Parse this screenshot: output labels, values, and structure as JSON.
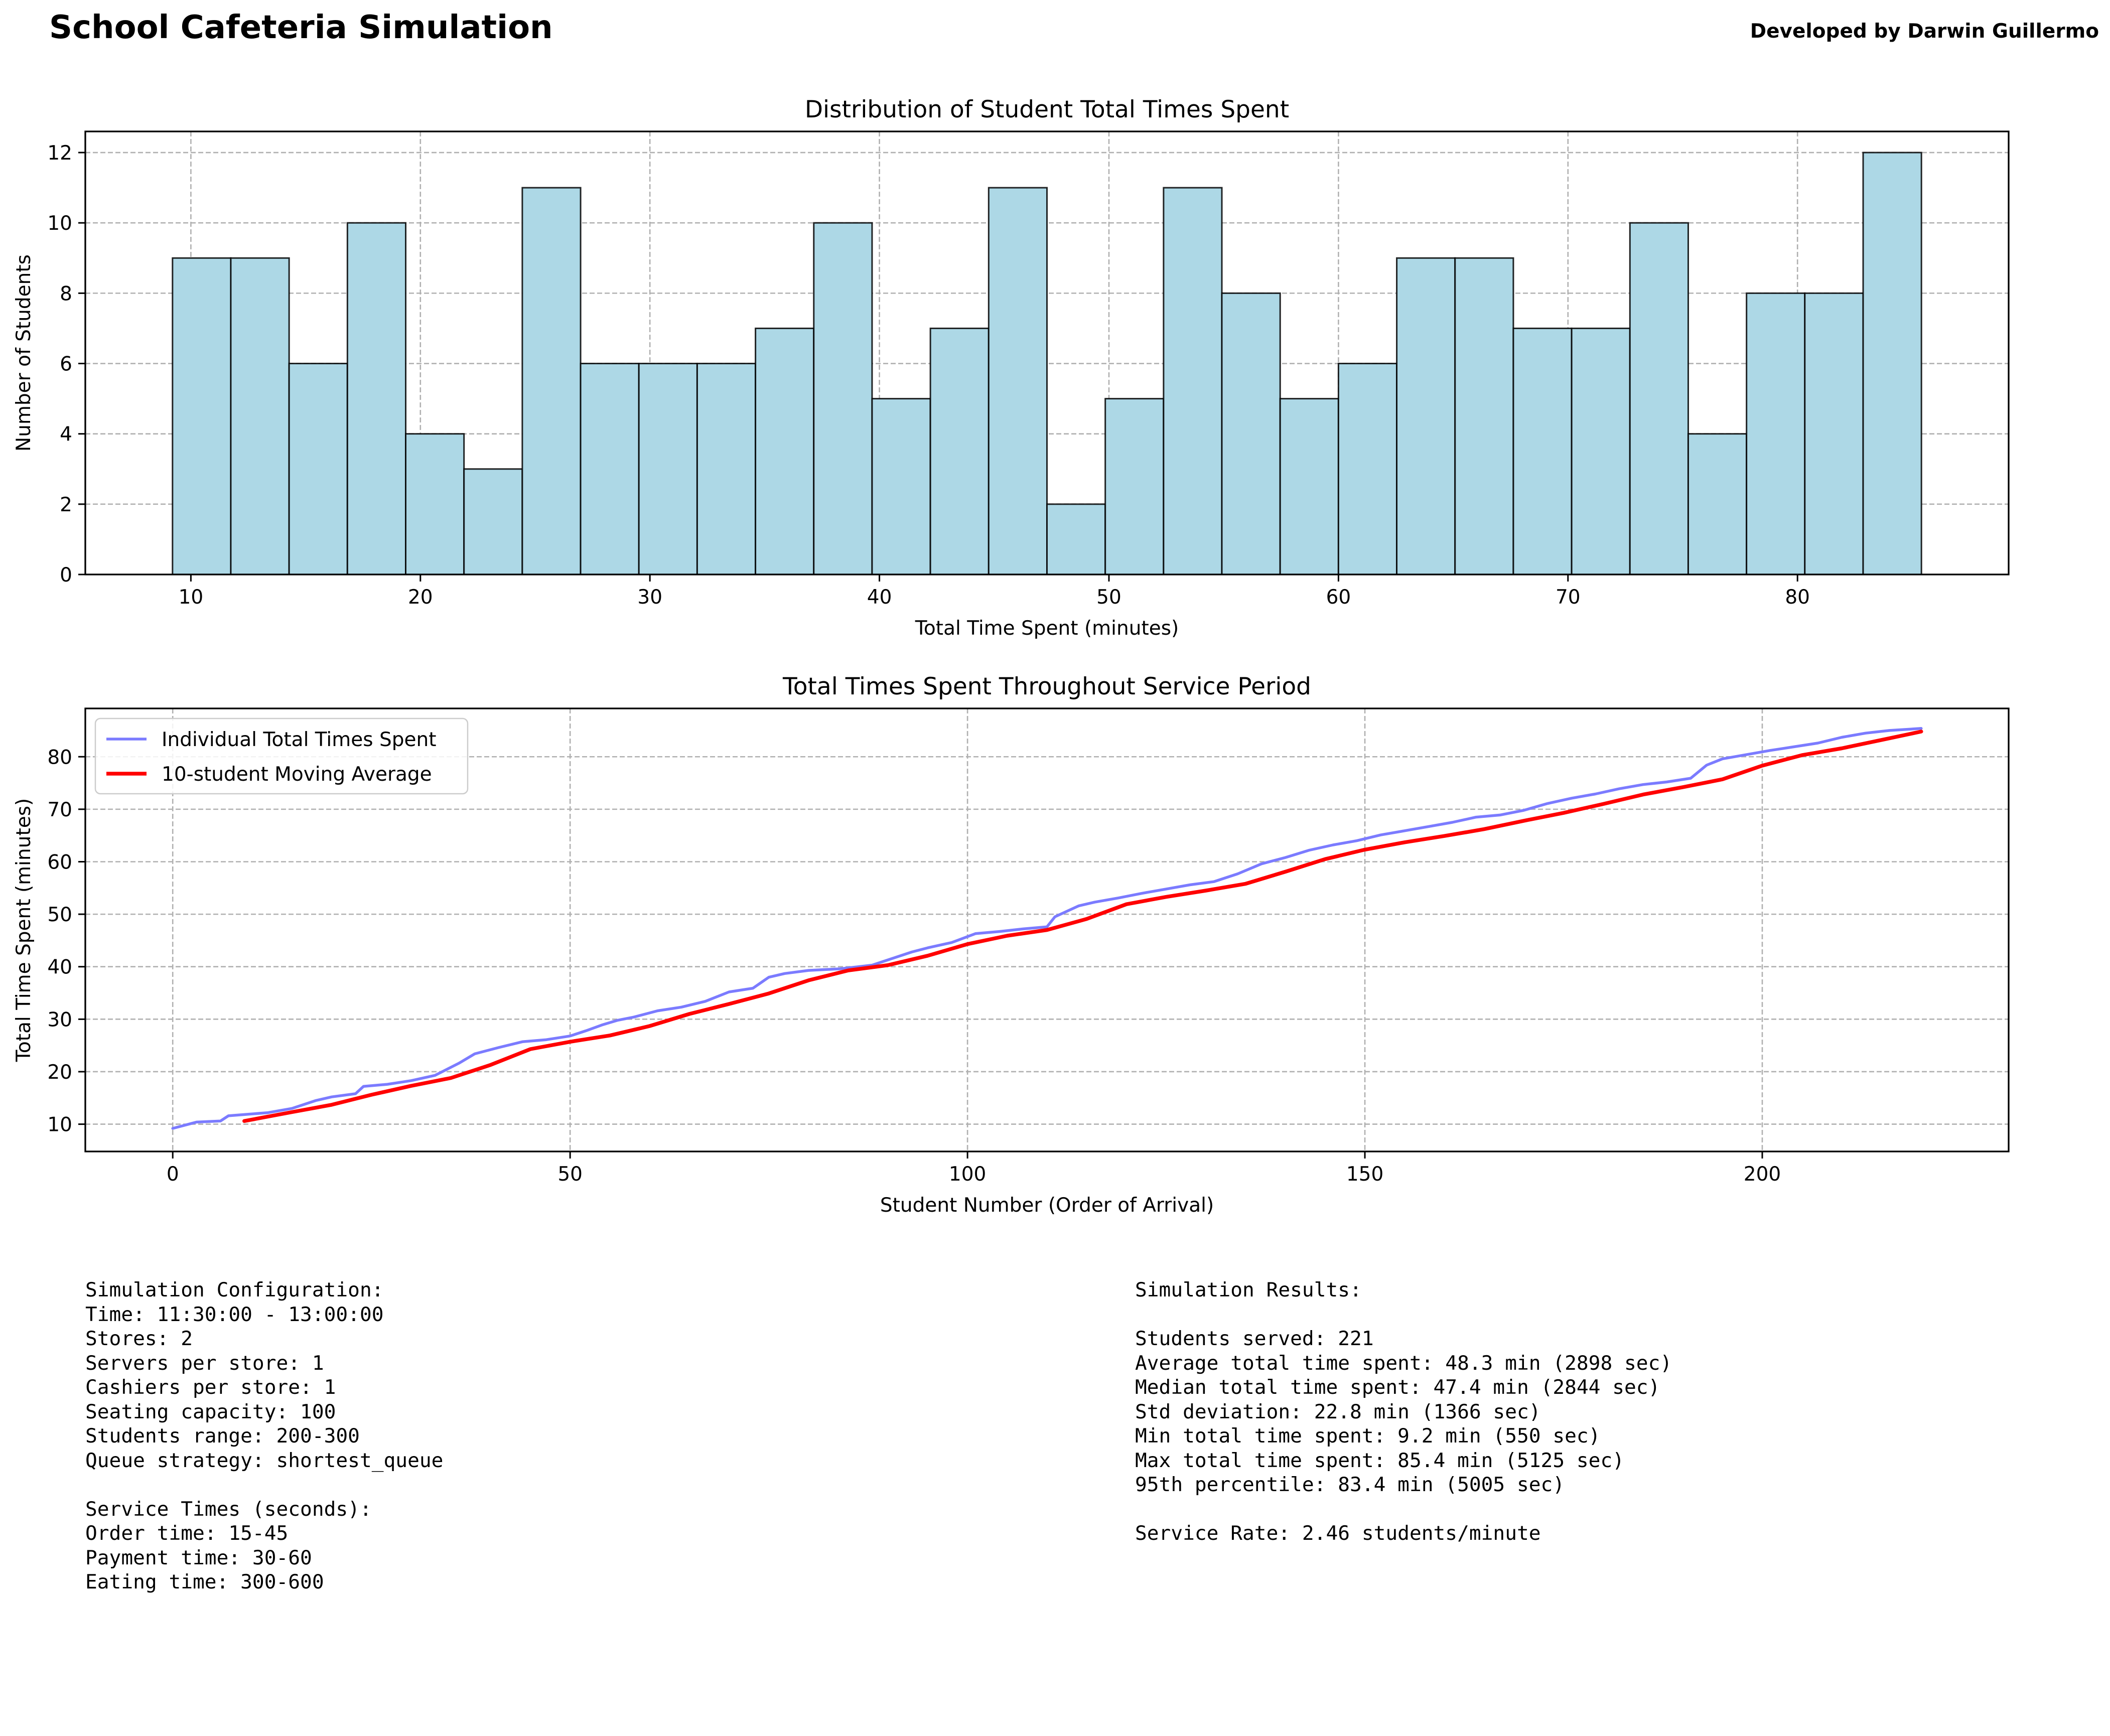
{
  "header": {
    "title": "School Cafeteria Simulation",
    "credit": "Developed by Darwin Guillermo"
  },
  "colors": {
    "hist_fill": "#add8e6",
    "hist_edge": "#000000",
    "individual_line": "#7b7bff",
    "moving_avg_line": "#ff0000",
    "grid": "#b0b0b0"
  },
  "chart_data": [
    {
      "type": "bar",
      "title": "Distribution of Student Total Times Spent",
      "xlabel": "Total Time Spent (minutes)",
      "ylabel": "Number of Students",
      "xlim": [
        5.4,
        89.2
      ],
      "ylim": [
        0,
        12.6
      ],
      "xticks": [
        10,
        20,
        30,
        40,
        50,
        60,
        70,
        80
      ],
      "yticks": [
        0,
        2,
        4,
        6,
        8,
        10,
        12
      ],
      "grid": true,
      "bins": {
        "start": 9.2,
        "end": 85.4,
        "count": 30,
        "values": [
          9,
          9,
          6,
          10,
          4,
          3,
          11,
          6,
          6,
          6,
          7,
          10,
          5,
          7,
          11,
          2,
          5,
          11,
          8,
          5,
          6,
          9,
          9,
          7,
          7,
          10,
          4,
          8,
          8,
          12
        ]
      }
    },
    {
      "type": "line",
      "title": "Total Times Spent Throughout Service Period",
      "xlabel": "Student Number (Order of Arrival)",
      "ylabel": "Total Time Spent (minutes)",
      "xlim": [
        -11,
        231
      ],
      "ylim": [
        4.8,
        89.2
      ],
      "xticks": [
        0,
        50,
        100,
        150,
        200
      ],
      "yticks": [
        10,
        20,
        30,
        40,
        50,
        60,
        70,
        80
      ],
      "grid": true,
      "legend": "upper-left",
      "series": [
        {
          "name": "Individual Total Times Spent",
          "x": [
            0,
            3,
            6,
            7,
            12,
            15,
            18,
            20,
            23,
            24,
            27,
            30,
            33,
            36,
            38,
            41,
            44,
            47,
            50,
            52,
            54,
            56,
            58,
            61,
            64,
            67,
            70,
            73,
            75,
            77,
            80,
            84,
            88,
            90,
            93,
            95,
            98,
            101,
            104,
            107,
            110,
            111,
            114,
            116,
            119,
            122,
            125,
            128,
            131,
            134,
            137,
            140,
            143,
            146,
            149,
            152,
            155,
            158,
            161,
            164,
            167,
            170,
            173,
            176,
            179,
            182,
            185,
            188,
            191,
            193,
            195,
            198,
            201,
            204,
            207,
            210,
            213,
            216,
            220
          ],
          "y": [
            9.2,
            10.4,
            10.6,
            11.6,
            12.2,
            13.0,
            14.5,
            15.2,
            15.8,
            17.2,
            17.6,
            18.3,
            19.3,
            21.6,
            23.4,
            24.6,
            25.7,
            26.1,
            26.8,
            27.8,
            28.9,
            29.8,
            30.4,
            31.6,
            32.3,
            33.4,
            35.2,
            35.9,
            38.0,
            38.7,
            39.3,
            39.6,
            40.3,
            41.3,
            42.8,
            43.6,
            44.6,
            46.3,
            46.7,
            47.2,
            47.6,
            49.5,
            51.6,
            52.3,
            53.1,
            54.0,
            54.8,
            55.6,
            56.2,
            57.7,
            59.6,
            60.8,
            62.2,
            63.2,
            64.0,
            65.1,
            65.9,
            66.7,
            67.5,
            68.5,
            68.9,
            69.8,
            71.1,
            72.1,
            72.9,
            73.9,
            74.7,
            75.2,
            75.9,
            78.4,
            79.6,
            80.4,
            81.2,
            81.9,
            82.6,
            83.7,
            84.5,
            85.0,
            85.4
          ]
        },
        {
          "name": "10-student Moving Average",
          "x": [
            9,
            15,
            20,
            25,
            30,
            35,
            40,
            45,
            50,
            55,
            60,
            65,
            70,
            75,
            80,
            85,
            90,
            95,
            100,
            105,
            110,
            115,
            120,
            125,
            130,
            135,
            140,
            145,
            150,
            155,
            160,
            165,
            170,
            175,
            180,
            185,
            190,
            195,
            200,
            205,
            210,
            215,
            220
          ],
          "y": [
            10.6,
            12.3,
            13.7,
            15.6,
            17.3,
            18.8,
            21.3,
            24.3,
            25.7,
            26.9,
            28.7,
            31.0,
            32.9,
            34.9,
            37.4,
            39.3,
            40.3,
            42.1,
            44.3,
            45.9,
            47.0,
            49.1,
            51.9,
            53.3,
            54.5,
            55.8,
            58.1,
            60.5,
            62.3,
            63.7,
            64.9,
            66.2,
            67.8,
            69.3,
            71.0,
            72.8,
            74.2,
            75.7,
            78.3,
            80.3,
            81.6,
            83.2,
            84.8
          ]
        }
      ]
    }
  ],
  "config_panel": {
    "lines": [
      "Simulation Configuration:",
      "Time: 11:30:00 - 13:00:00",
      "Stores: 2",
      "Servers per store: 1",
      "Cashiers per store: 1",
      "Seating capacity: 100",
      "Students range: 200-300",
      "Queue strategy: shortest_queue",
      "",
      "Service Times (seconds):",
      "Order time: 15-45",
      "Payment time: 30-60",
      "Eating time: 300-600"
    ]
  },
  "results_panel": {
    "lines": [
      "Simulation Results:",
      "",
      "Students served: 221",
      "Average total time spent: 48.3 min (2898 sec)",
      "Median total time spent: 47.4 min (2844 sec)",
      "Std deviation: 22.8 min (1366 sec)",
      "Min total time spent: 9.2 min (550 sec)",
      "Max total time spent: 85.4 min (5125 sec)",
      "95th percentile: 83.4 min (5005 sec)",
      "",
      "Service Rate: 2.46 students/minute"
    ]
  }
}
